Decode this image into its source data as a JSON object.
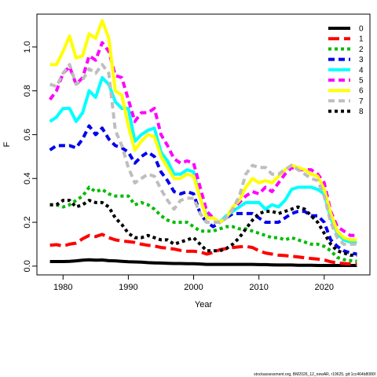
{
  "chart_data": {
    "type": "line",
    "xlabel": "Year",
    "ylabel": "F",
    "xlim": [
      1976,
      2027
    ],
    "ylim": [
      -0.04,
      1.15
    ],
    "xticks": [
      1980,
      1990,
      2000,
      2010,
      2020
    ],
    "yticks": [
      0.0,
      0.2,
      0.4,
      0.6,
      0.8,
      1.0
    ],
    "xtick_labels": [
      "1980",
      "1990",
      "2000",
      "2010",
      "2020"
    ],
    "ytick_labels": [
      "0.0",
      "0.2",
      "0.4",
      "0.6",
      "0.8",
      "1.0"
    ],
    "grid": false,
    "legend_position": "top-right",
    "footer": "stockassessment.org, BM2026_12_newAR, r19625, git:1cc464b8086f",
    "series": [
      {
        "name": "0",
        "color": "#000000",
        "dash": "solid",
        "x": [
          1978,
          1979,
          1980,
          1981,
          1982,
          1983,
          1984,
          1985,
          1986,
          1987,
          1988,
          1989,
          1990,
          1991,
          1992,
          1993,
          1994,
          1995,
          1996,
          1997,
          1998,
          1999,
          2000,
          2001,
          2002,
          2003,
          2004,
          2005,
          2006,
          2007,
          2008,
          2009,
          2010,
          2011,
          2012,
          2013,
          2014,
          2015,
          2016,
          2017,
          2018,
          2019,
          2020,
          2021,
          2022,
          2023,
          2024,
          2025
        ],
        "y": [
          0.021,
          0.021,
          0.021,
          0.022,
          0.024,
          0.027,
          0.029,
          0.027,
          0.028,
          0.025,
          0.024,
          0.022,
          0.02,
          0.019,
          0.018,
          0.016,
          0.015,
          0.014,
          0.013,
          0.012,
          0.012,
          0.011,
          0.011,
          0.01,
          0.008,
          0.008,
          0.008,
          0.008,
          0.008,
          0.008,
          0.008,
          0.008,
          0.007,
          0.007,
          0.006,
          0.005,
          0.005,
          0.005,
          0.004,
          0.004,
          0.004,
          0.003,
          0.003,
          0.003,
          0.003,
          0.003,
          0.003,
          0.003
        ]
      },
      {
        "name": "1",
        "color": "#ff0000",
        "dash": "long",
        "x": [
          1978,
          1979,
          1980,
          1981,
          1982,
          1983,
          1984,
          1985,
          1986,
          1987,
          1988,
          1989,
          1990,
          1991,
          1992,
          1993,
          1994,
          1995,
          1996,
          1997,
          1998,
          1999,
          2000,
          2001,
          2002,
          2003,
          2004,
          2005,
          2006,
          2007,
          2008,
          2009,
          2010,
          2011,
          2012,
          2013,
          2014,
          2015,
          2016,
          2017,
          2018,
          2019,
          2020,
          2021,
          2022,
          2023,
          2024,
          2025
        ],
        "y": [
          0.095,
          0.098,
          0.092,
          0.1,
          0.105,
          0.125,
          0.14,
          0.135,
          0.145,
          0.13,
          0.12,
          0.115,
          0.112,
          0.108,
          0.1,
          0.095,
          0.092,
          0.085,
          0.082,
          0.078,
          0.072,
          0.068,
          0.068,
          0.065,
          0.055,
          0.062,
          0.075,
          0.08,
          0.085,
          0.088,
          0.09,
          0.085,
          0.07,
          0.06,
          0.055,
          0.05,
          0.048,
          0.045,
          0.042,
          0.038,
          0.035,
          0.032,
          0.028,
          0.02,
          0.015,
          0.012,
          0.01,
          0.009
        ]
      },
      {
        "name": "2",
        "color": "#00bb00",
        "dash": "short",
        "x": [
          1978,
          1979,
          1980,
          1981,
          1982,
          1983,
          1984,
          1985,
          1986,
          1987,
          1988,
          1989,
          1990,
          1991,
          1992,
          1993,
          1994,
          1995,
          1996,
          1997,
          1998,
          1999,
          2000,
          2001,
          2002,
          2003,
          2004,
          2005,
          2006,
          2007,
          2008,
          2009,
          2010,
          2011,
          2012,
          2013,
          2014,
          2015,
          2016,
          2017,
          2018,
          2019,
          2020,
          2021,
          2022,
          2023,
          2024,
          2025
        ],
        "y": [
          0.28,
          0.28,
          0.27,
          0.28,
          0.3,
          0.32,
          0.36,
          0.34,
          0.35,
          0.33,
          0.32,
          0.32,
          0.32,
          0.28,
          0.29,
          0.28,
          0.26,
          0.23,
          0.21,
          0.2,
          0.2,
          0.2,
          0.18,
          0.16,
          0.16,
          0.16,
          0.17,
          0.18,
          0.18,
          0.17,
          0.17,
          0.16,
          0.15,
          0.14,
          0.13,
          0.13,
          0.12,
          0.13,
          0.12,
          0.11,
          0.1,
          0.1,
          0.09,
          0.07,
          0.04,
          0.03,
          0.025,
          0.022
        ]
      },
      {
        "name": "3",
        "color": "#0000ee",
        "dash": "dashed",
        "x": [
          1978,
          1979,
          1980,
          1981,
          1982,
          1983,
          1984,
          1985,
          1986,
          1987,
          1988,
          1989,
          1990,
          1991,
          1992,
          1993,
          1994,
          1995,
          1996,
          1997,
          1998,
          1999,
          2000,
          2001,
          2002,
          2003,
          2004,
          2005,
          2006,
          2007,
          2008,
          2009,
          2010,
          2011,
          2012,
          2013,
          2014,
          2015,
          2016,
          2017,
          2018,
          2019,
          2020,
          2021,
          2022,
          2023,
          2024,
          2025
        ],
        "y": [
          0.53,
          0.55,
          0.55,
          0.55,
          0.54,
          0.58,
          0.64,
          0.6,
          0.63,
          0.58,
          0.55,
          0.54,
          0.52,
          0.47,
          0.5,
          0.52,
          0.5,
          0.43,
          0.39,
          0.34,
          0.33,
          0.34,
          0.33,
          0.24,
          0.2,
          0.18,
          0.2,
          0.22,
          0.24,
          0.24,
          0.24,
          0.24,
          0.22,
          0.2,
          0.2,
          0.2,
          0.22,
          0.24,
          0.25,
          0.25,
          0.23,
          0.23,
          0.2,
          0.12,
          0.09,
          0.07,
          0.06,
          0.055
        ]
      },
      {
        "name": "4",
        "color": "#00ffff",
        "dash": "solid",
        "x": [
          1978,
          1979,
          1980,
          1981,
          1982,
          1983,
          1984,
          1985,
          1986,
          1987,
          1988,
          1989,
          1990,
          1991,
          1992,
          1993,
          1994,
          1995,
          1996,
          1997,
          1998,
          1999,
          2000,
          2001,
          2002,
          2003,
          2004,
          2005,
          2006,
          2007,
          2008,
          2009,
          2010,
          2011,
          2012,
          2013,
          2014,
          2015,
          2016,
          2017,
          2018,
          2019,
          2020,
          2021,
          2022,
          2023,
          2024,
          2025
        ],
        "y": [
          0.66,
          0.68,
          0.72,
          0.72,
          0.66,
          0.7,
          0.8,
          0.77,
          0.86,
          0.83,
          0.75,
          0.72,
          0.72,
          0.57,
          0.6,
          0.62,
          0.63,
          0.52,
          0.48,
          0.42,
          0.42,
          0.44,
          0.43,
          0.31,
          0.23,
          0.22,
          0.2,
          0.23,
          0.25,
          0.27,
          0.29,
          0.29,
          0.29,
          0.26,
          0.28,
          0.27,
          0.3,
          0.35,
          0.36,
          0.36,
          0.36,
          0.35,
          0.33,
          0.22,
          0.15,
          0.12,
          0.11,
          0.11
        ]
      },
      {
        "name": "5",
        "color": "#ff00ff",
        "dash": "dashed",
        "x": [
          1978,
          1979,
          1980,
          1981,
          1982,
          1983,
          1984,
          1985,
          1986,
          1987,
          1988,
          1989,
          1990,
          1991,
          1992,
          1993,
          1994,
          1995,
          1996,
          1997,
          1998,
          1999,
          2000,
          2001,
          2002,
          2003,
          2004,
          2005,
          2006,
          2007,
          2008,
          2009,
          2010,
          2011,
          2012,
          2013,
          2014,
          2015,
          2016,
          2017,
          2018,
          2019,
          2020,
          2021,
          2022,
          2023,
          2024,
          2025
        ],
        "y": [
          0.76,
          0.8,
          0.88,
          0.91,
          0.83,
          0.86,
          0.96,
          0.94,
          1.02,
          0.98,
          0.87,
          0.86,
          0.76,
          0.66,
          0.7,
          0.7,
          0.72,
          0.6,
          0.55,
          0.49,
          0.47,
          0.48,
          0.47,
          0.36,
          0.25,
          0.22,
          0.2,
          0.22,
          0.26,
          0.29,
          0.32,
          0.34,
          0.33,
          0.36,
          0.34,
          0.38,
          0.42,
          0.45,
          0.44,
          0.44,
          0.44,
          0.42,
          0.38,
          0.25,
          0.18,
          0.16,
          0.14,
          0.14
        ]
      },
      {
        "name": "6",
        "color": "#ffff00",
        "dash": "solid",
        "x": [
          1978,
          1979,
          1980,
          1981,
          1982,
          1983,
          1984,
          1985,
          1986,
          1987,
          1988,
          1989,
          1990,
          1991,
          1992,
          1993,
          1994,
          1995,
          1996,
          1997,
          1998,
          1999,
          2000,
          2001,
          2002,
          2003,
          2004,
          2005,
          2006,
          2007,
          2008,
          2009,
          2010,
          2011,
          2012,
          2013,
          2014,
          2015,
          2016,
          2017,
          2018,
          2019,
          2020,
          2021,
          2022,
          2023,
          2024,
          2025
        ],
        "y": [
          0.92,
          0.92,
          0.98,
          1.05,
          0.95,
          0.96,
          1.06,
          1.04,
          1.12,
          1.04,
          0.8,
          0.78,
          0.64,
          0.53,
          0.57,
          0.6,
          0.59,
          0.5,
          0.45,
          0.4,
          0.4,
          0.42,
          0.41,
          0.31,
          0.22,
          0.22,
          0.2,
          0.22,
          0.27,
          0.3,
          0.36,
          0.4,
          0.38,
          0.39,
          0.38,
          0.41,
          0.44,
          0.46,
          0.45,
          0.44,
          0.42,
          0.41,
          0.35,
          0.24,
          0.16,
          0.13,
          0.12,
          0.12
        ]
      },
      {
        "name": "7",
        "color": "#bebebe",
        "dash": "dashed",
        "x": [
          1978,
          1979,
          1980,
          1981,
          1982,
          1983,
          1984,
          1985,
          1986,
          1987,
          1988,
          1989,
          1990,
          1991,
          1992,
          1993,
          1994,
          1995,
          1996,
          1997,
          1998,
          1999,
          2000,
          2001,
          2002,
          2003,
          2004,
          2005,
          2006,
          2007,
          2008,
          2009,
          2010,
          2011,
          2012,
          2013,
          2014,
          2015,
          2016,
          2017,
          2018,
          2019,
          2020,
          2021,
          2022,
          2023,
          2024,
          2025
        ],
        "y": [
          0.83,
          0.82,
          0.88,
          0.92,
          0.83,
          0.85,
          0.9,
          0.88,
          0.92,
          0.88,
          0.62,
          0.55,
          0.45,
          0.38,
          0.4,
          0.42,
          0.41,
          0.35,
          0.3,
          0.26,
          0.3,
          0.31,
          0.31,
          0.24,
          0.2,
          0.2,
          0.2,
          0.22,
          0.26,
          0.32,
          0.42,
          0.46,
          0.45,
          0.45,
          0.42,
          0.42,
          0.44,
          0.46,
          0.44,
          0.42,
          0.4,
          0.39,
          0.32,
          0.2,
          0.13,
          0.1,
          0.1,
          0.1
        ]
      },
      {
        "name": "8",
        "color": "#000000",
        "dash": "short",
        "x": [
          1978,
          1979,
          1980,
          1981,
          1982,
          1983,
          1984,
          1985,
          1986,
          1987,
          1988,
          1989,
          1990,
          1991,
          1992,
          1993,
          1994,
          1995,
          1996,
          1997,
          1998,
          1999,
          2000,
          2001,
          2002,
          2003,
          2004,
          2005,
          2006,
          2007,
          2008,
          2009,
          2010,
          2011,
          2012,
          2013,
          2014,
          2015,
          2016,
          2017,
          2018,
          2019,
          2020,
          2021,
          2022,
          2023,
          2024,
          2025
        ],
        "y": [
          0.28,
          0.28,
          0.3,
          0.3,
          0.27,
          0.28,
          0.3,
          0.29,
          0.29,
          0.27,
          0.22,
          0.19,
          0.15,
          0.13,
          0.13,
          0.14,
          0.13,
          0.12,
          0.12,
          0.1,
          0.11,
          0.12,
          0.13,
          0.1,
          0.07,
          0.07,
          0.07,
          0.08,
          0.1,
          0.13,
          0.17,
          0.21,
          0.24,
          0.25,
          0.25,
          0.24,
          0.25,
          0.26,
          0.27,
          0.26,
          0.23,
          0.2,
          0.15,
          0.1,
          0.07,
          0.06,
          0.05,
          0.05
        ]
      }
    ]
  }
}
